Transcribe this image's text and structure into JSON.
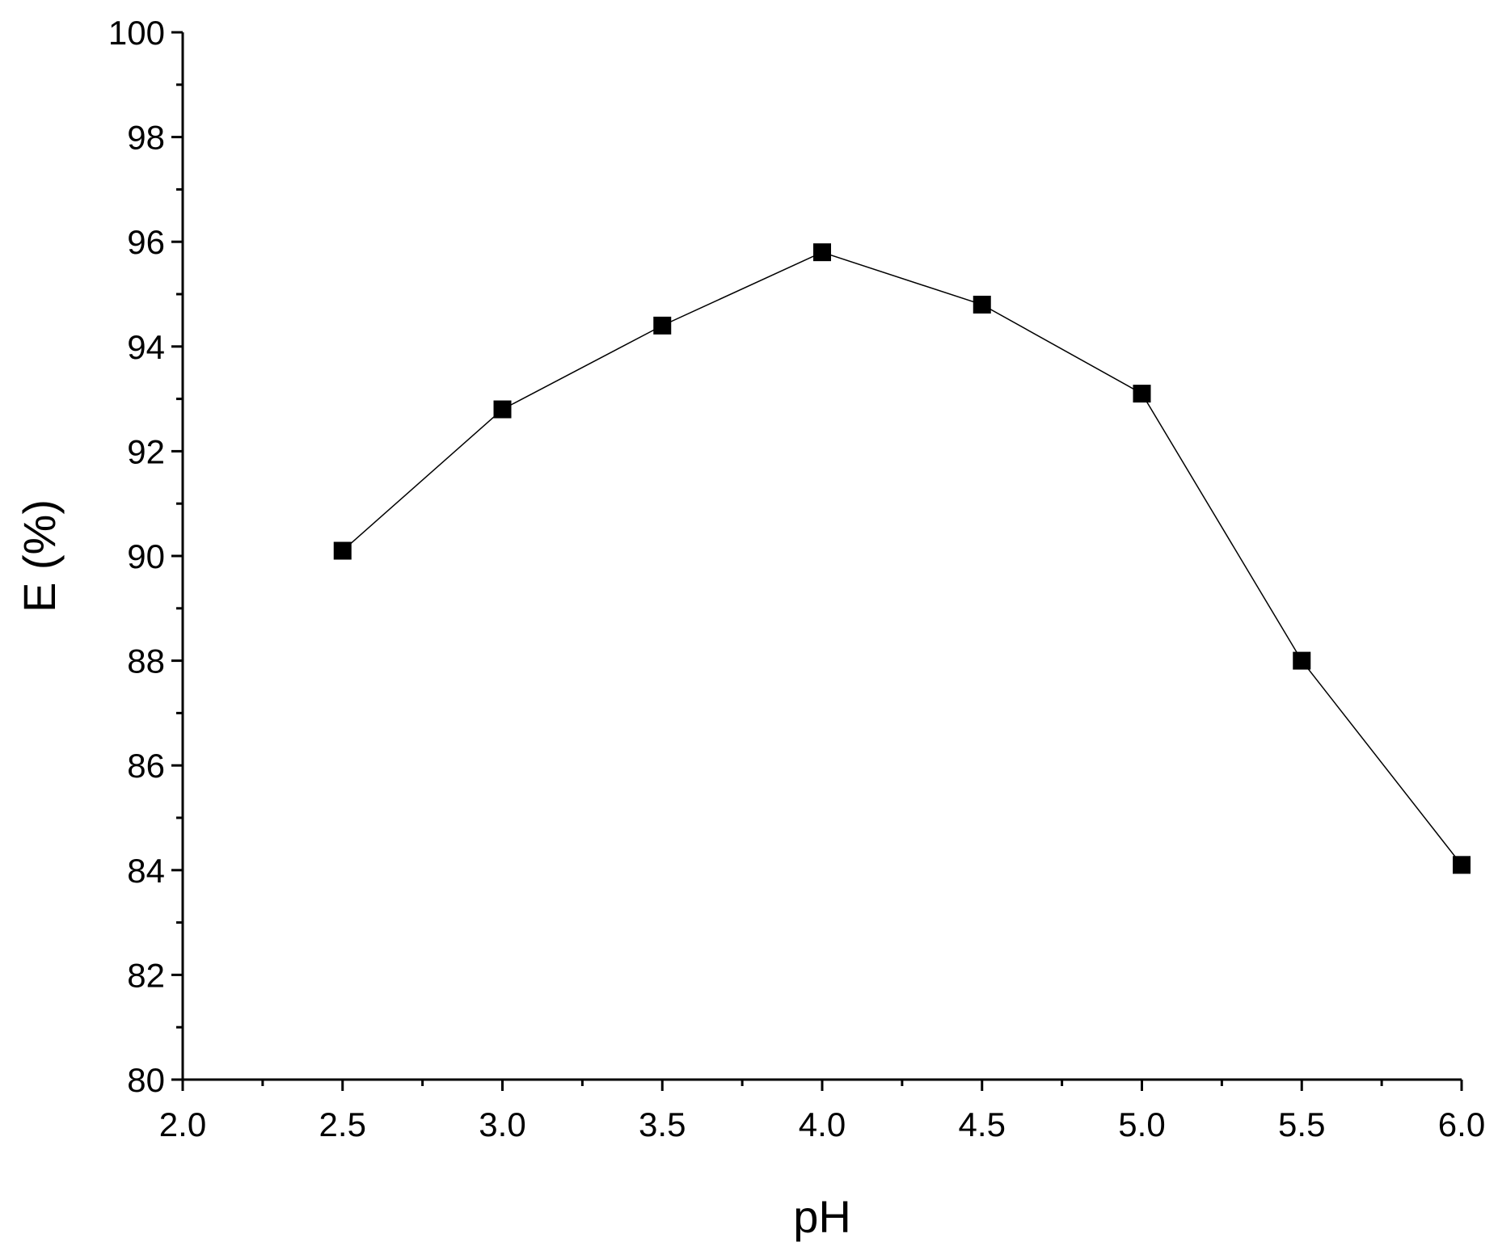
{
  "chart_data": {
    "type": "line",
    "title": "",
    "xlabel": "pH",
    "ylabel": "E (%)",
    "xlim": [
      2.0,
      6.0
    ],
    "ylim": [
      80,
      100
    ],
    "xticks": [
      "2.0",
      "2.5",
      "3.0",
      "3.5",
      "4.0",
      "4.5",
      "5.0",
      "5.5",
      "6.0"
    ],
    "yticks": [
      "80",
      "82",
      "84",
      "86",
      "88",
      "90",
      "92",
      "94",
      "96",
      "98",
      "100"
    ],
    "grid": false,
    "legend": "none",
    "marker": "square",
    "line_color": "#000000",
    "series": [
      {
        "x": [
          2.5,
          3.0,
          3.5,
          4.0,
          4.5,
          5.0,
          5.5,
          6.0
        ],
        "y": [
          90.1,
          92.8,
          94.4,
          95.8,
          94.8,
          93.1,
          88.0,
          84.1
        ]
      }
    ]
  }
}
